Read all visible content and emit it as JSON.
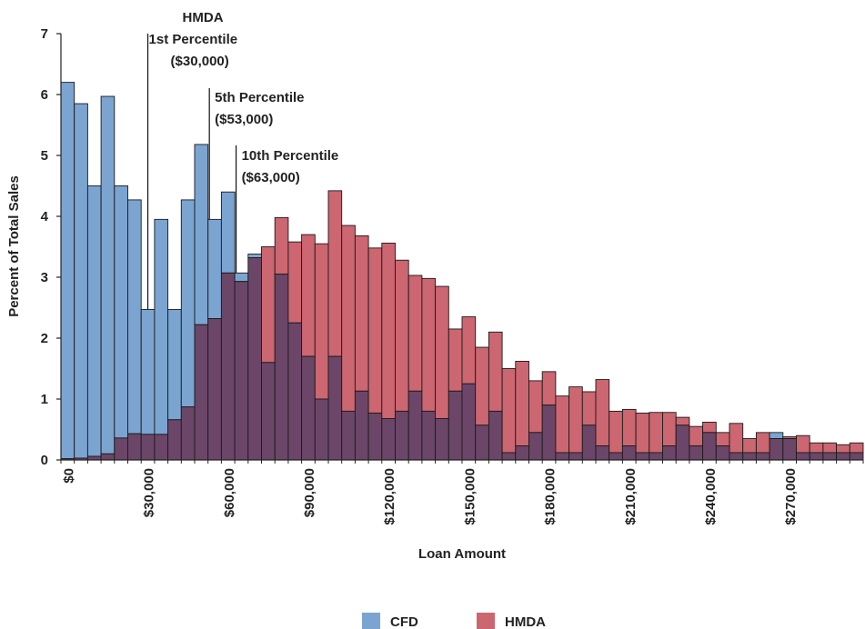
{
  "chart_data": {
    "type": "bar",
    "subtype": "overlapping-histogram",
    "xlabel": "Loan Amount",
    "ylabel": "Percent of Total Sales",
    "ylim": [
      0,
      7
    ],
    "yticks": [
      0,
      1,
      2,
      3,
      4,
      5,
      6,
      7
    ],
    "xlim": [
      -2500,
      297500
    ],
    "bin_width": 5000,
    "xticks": [
      0,
      30000,
      60000,
      90000,
      120000,
      150000,
      180000,
      210000,
      240000,
      270000
    ],
    "xtick_labels": [
      "$0",
      "$30,000",
      "$60,000",
      "$90,000",
      "$120,000",
      "$150,000",
      "$180,000",
      "$210,000",
      "$240,000",
      "$270,000"
    ],
    "x": [
      0,
      5000,
      10000,
      15000,
      20000,
      25000,
      30000,
      35000,
      40000,
      45000,
      50000,
      55000,
      60000,
      65000,
      70000,
      75000,
      80000,
      85000,
      90000,
      95000,
      100000,
      105000,
      110000,
      115000,
      120000,
      125000,
      130000,
      135000,
      140000,
      145000,
      150000,
      155000,
      160000,
      165000,
      170000,
      175000,
      180000,
      185000,
      190000,
      195000,
      200000,
      205000,
      210000,
      215000,
      220000,
      225000,
      230000,
      235000,
      240000,
      245000,
      250000,
      255000,
      260000,
      265000,
      270000,
      275000,
      280000,
      285000,
      290000,
      295000
    ],
    "series": [
      {
        "name": "CFD",
        "color": "#7ba4d0",
        "values": [
          6.2,
          5.85,
          4.5,
          5.97,
          4.5,
          4.27,
          2.47,
          3.95,
          2.47,
          4.27,
          5.18,
          3.95,
          4.4,
          3.07,
          3.38,
          1.6,
          3.05,
          2.25,
          1.7,
          1.0,
          1.7,
          0.8,
          1.13,
          0.77,
          0.68,
          0.8,
          1.13,
          0.8,
          0.68,
          1.13,
          1.25,
          0.57,
          0.8,
          0.12,
          0.23,
          0.45,
          0.9,
          0.12,
          0.12,
          0.57,
          0.23,
          0.12,
          0.23,
          0.12,
          0.12,
          0.23,
          0.57,
          0.23,
          0.45,
          0.23,
          0.12,
          0.12,
          0.12,
          0.45,
          0.35,
          0.12,
          0.12,
          0.12,
          0.12,
          0.12
        ]
      },
      {
        "name": "HMDA",
        "color": "#cc6670",
        "values": [
          0.02,
          0.03,
          0.06,
          0.1,
          0.36,
          0.43,
          0.42,
          0.42,
          0.66,
          0.87,
          2.22,
          2.32,
          3.07,
          2.93,
          3.32,
          3.5,
          3.98,
          3.58,
          3.7,
          3.55,
          4.42,
          3.85,
          3.68,
          3.48,
          3.56,
          3.28,
          3.03,
          2.98,
          2.85,
          2.15,
          2.35,
          1.85,
          2.1,
          1.5,
          1.62,
          1.3,
          1.45,
          1.05,
          1.2,
          1.12,
          1.32,
          0.8,
          0.83,
          0.77,
          0.78,
          0.78,
          0.7,
          0.55,
          0.62,
          0.45,
          0.6,
          0.35,
          0.45,
          0.35,
          0.38,
          0.4,
          0.28,
          0.28,
          0.25,
          0.28
        ]
      }
    ],
    "overlap_color": "#6b4668",
    "annotations": [
      {
        "x": 30000,
        "lines": [
          "HMDA",
          "1st Percentile",
          "($30,000)"
        ]
      },
      {
        "x": 53000,
        "lines": [
          "5th Percentile",
          "($53,000)"
        ]
      },
      {
        "x": 63000,
        "lines": [
          "10th Percentile",
          "($63,000)"
        ]
      }
    ],
    "legend": {
      "position": "bottom-center",
      "items": [
        "CFD",
        "HMDA"
      ]
    },
    "grid": false
  }
}
